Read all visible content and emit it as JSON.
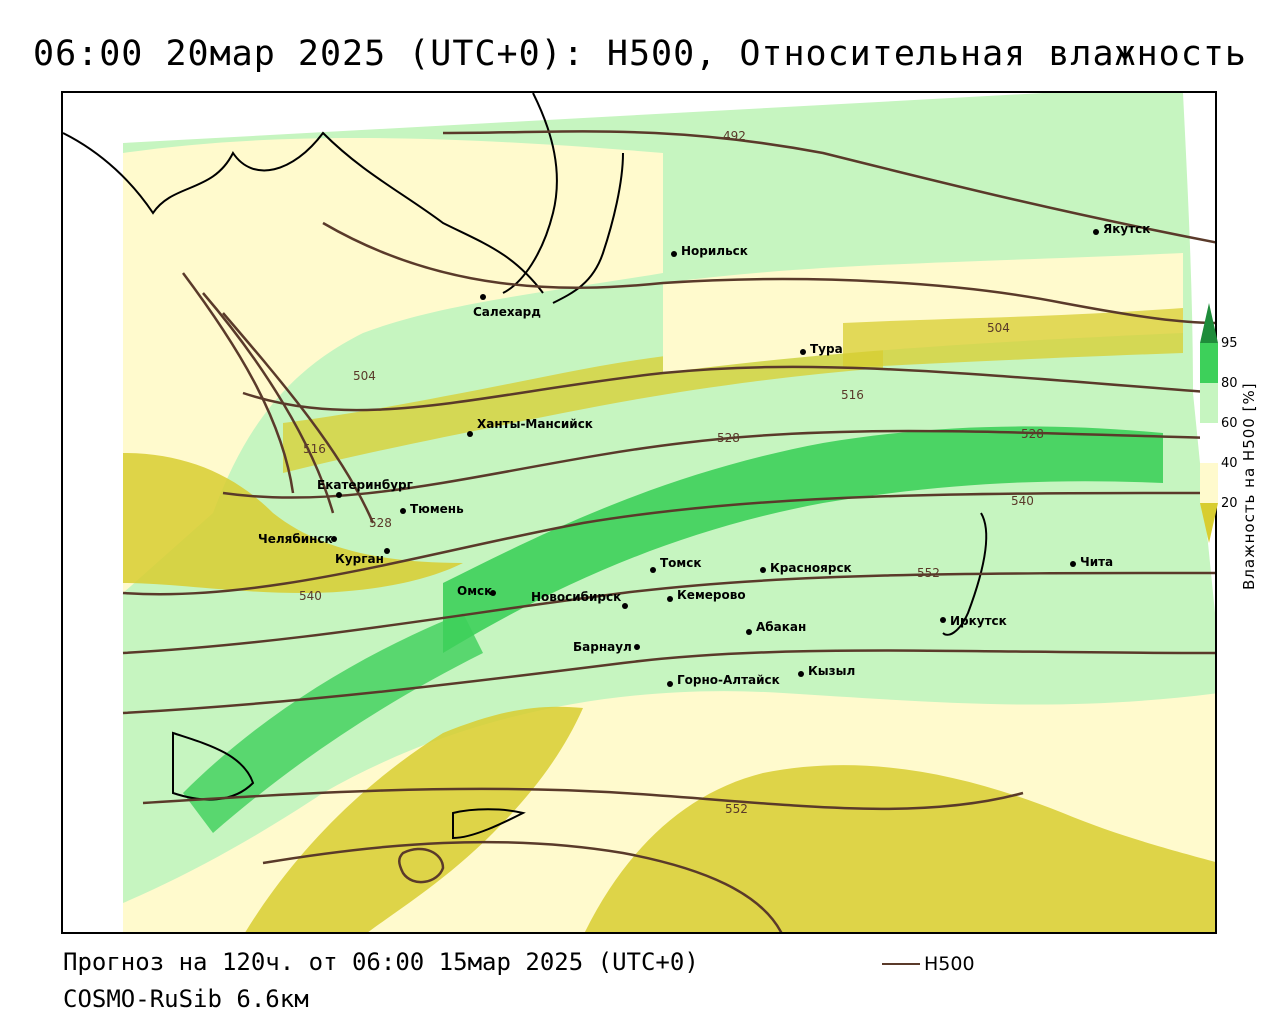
{
  "title": "06:00 20мар 2025 (UTC+0): H500, Относительная влажность",
  "footer": {
    "forecast": "Прогноз на 120ч. от 06:00 15мар 2025 (UTC+0)",
    "model": "COSMO-RuSib 6.6км",
    "legend_label": "H500"
  },
  "colorbar": {
    "label": "Влажность на H500 [%]",
    "ticks": [
      "95",
      "80",
      "60",
      "40",
      "20"
    ],
    "colors": {
      "c95": "#1e8c3a",
      "c80": "#3dd05a",
      "c60": "#c6f5c0",
      "c40": "#fffacd",
      "c20": "#d8cd30"
    }
  },
  "contour_color": "#5a3a2a",
  "contour_labels": [
    "492",
    "504",
    "504",
    "516",
    "516",
    "528",
    "528",
    "528",
    "540",
    "540",
    "552",
    "552"
  ],
  "cities": [
    {
      "name": "Якутск"
    },
    {
      "name": "Норильск"
    },
    {
      "name": "Салехард"
    },
    {
      "name": "Тура"
    },
    {
      "name": "Ханты-Мансийск"
    },
    {
      "name": "Екатеринбург"
    },
    {
      "name": "Тюмень"
    },
    {
      "name": "Челябинск"
    },
    {
      "name": "Курган"
    },
    {
      "name": "Омск"
    },
    {
      "name": "Томск"
    },
    {
      "name": "Красноярск"
    },
    {
      "name": "Новосибирск"
    },
    {
      "name": "Кемерово"
    },
    {
      "name": "Абакан"
    },
    {
      "name": "Иркутск"
    },
    {
      "name": "Чита"
    },
    {
      "name": "Барнаул"
    },
    {
      "name": "Горно-Алтайск"
    },
    {
      "name": "Кызыл"
    }
  ]
}
